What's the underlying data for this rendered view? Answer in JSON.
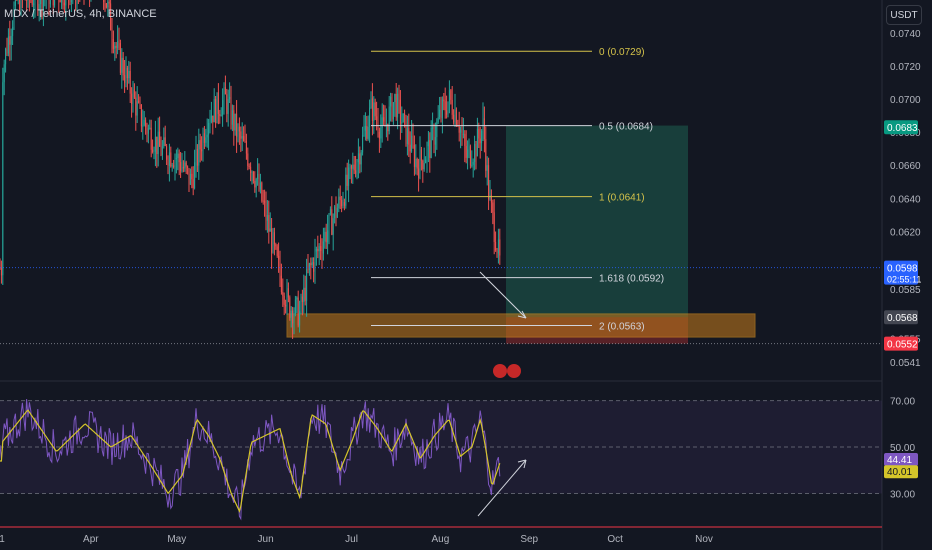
{
  "header": {
    "title": "MDX / TetherUS, 4h, BINANCE",
    "currency": "USDT"
  },
  "colors": {
    "background": "#131722",
    "up": "#26a69a",
    "down": "#ef5350",
    "rsi": "#7e57c2",
    "rsi_ma": "#d4c52a",
    "fib_gold": "#d4c24a",
    "fib_white": "#d1d4dc",
    "zone": "#b8741a",
    "price_line": "#26a69a",
    "sl": "#f23645"
  },
  "chart_data": [
    {
      "type": "candlestick",
      "title": "MDX / TetherUS, 4h, BINANCE",
      "ylim": [
        0.053,
        0.076
      ],
      "y_ticks": [
        "0.0740",
        "0.0720",
        "0.0700",
        "0.0680",
        "0.0660",
        "0.0640",
        "0.0620",
        "0.0585",
        "0.0555",
        "0.0541"
      ],
      "x_ticks": [
        "1",
        "Apr",
        "May",
        "Jun",
        "Jul",
        "Aug",
        "Sep",
        "Oct",
        "Nov"
      ],
      "tick_dates": [
        "2021-03-01",
        "2021-04-01",
        "2021-05-01",
        "2021-06-01",
        "2021-07-01",
        "2021-08-01",
        "2021-09-01",
        "2021-10-01",
        "2021-11-01"
      ],
      "series_path": [
        [
          "2021-03-01",
          0.0715
        ],
        [
          "2021-03-03",
          0.0735
        ],
        [
          "2021-03-06",
          0.076
        ],
        [
          "2021-04-05",
          0.077
        ],
        [
          "2021-04-10",
          0.073
        ],
        [
          "2021-04-18",
          0.069
        ],
        [
          "2021-04-25",
          0.067
        ],
        [
          "2021-05-01",
          0.0665
        ],
        [
          "2021-05-06",
          0.065
        ],
        [
          "2021-05-12",
          0.069
        ],
        [
          "2021-05-18",
          0.07
        ],
        [
          "2021-05-22",
          0.068
        ],
        [
          "2021-05-26",
          0.0665
        ],
        [
          "2021-05-29",
          0.065
        ],
        [
          "2021-06-01",
          0.063
        ],
        [
          "2021-06-05",
          0.06
        ],
        [
          "2021-06-09",
          0.0575
        ],
        [
          "2021-06-13",
          0.057
        ],
        [
          "2021-06-16",
          0.0595
        ],
        [
          "2021-06-21",
          0.0615
        ],
        [
          "2021-06-25",
          0.063
        ],
        [
          "2021-06-30",
          0.065
        ],
        [
          "2021-07-04",
          0.067
        ],
        [
          "2021-07-08",
          0.0695
        ],
        [
          "2021-07-12",
          0.068
        ],
        [
          "2021-07-16",
          0.07
        ],
        [
          "2021-07-20",
          0.068
        ],
        [
          "2021-07-24",
          0.066
        ],
        [
          "2021-07-28",
          0.067
        ],
        [
          "2021-08-01",
          0.069
        ],
        [
          "2021-08-04",
          0.07
        ],
        [
          "2021-08-07",
          0.069
        ],
        [
          "2021-08-10",
          0.0665
        ],
        [
          "2021-08-13",
          0.067
        ],
        [
          "2021-08-16",
          0.0684
        ],
        [
          "2021-08-18",
          0.064
        ],
        [
          "2021-08-20",
          0.062
        ],
        [
          "2021-08-22",
          0.0598
        ]
      ],
      "fib_levels": [
        {
          "label": "0 (0.0729)",
          "value": 0.0729,
          "color": "gold"
        },
        {
          "label": "0.5 (0.0684)",
          "value": 0.0684,
          "color": "white"
        },
        {
          "label": "1 (0.0641)",
          "value": 0.0641,
          "color": "gold"
        },
        {
          "label": "1.618 (0.0592)",
          "value": 0.0592,
          "color": "white"
        },
        {
          "label": "2 (0.0563)",
          "value": 0.0563,
          "color": "white"
        }
      ],
      "demand_zone": [
        0.0556,
        0.057
      ],
      "long_position": {
        "entry": 0.0568,
        "target": 0.0684,
        "stop": 0.0552
      },
      "price_labels": [
        {
          "text": "0.0683",
          "value": 0.0683,
          "kind": "green"
        },
        {
          "text": "0.0598",
          "value": 0.0598,
          "kind": "blue",
          "sub": "02:55:11"
        },
        {
          "text": "0.0568",
          "value": 0.0568,
          "kind": "grey"
        },
        {
          "text": "0.0552",
          "value": 0.0552,
          "kind": "red"
        }
      ]
    },
    {
      "type": "line",
      "name": "RSI",
      "ylim": [
        16,
        78
      ],
      "y_ticks": [
        "70.00",
        "50.00",
        "30.00"
      ],
      "bands": [
        70,
        50,
        30
      ],
      "rsi_path": [
        [
          "2021-03-01",
          52
        ],
        [
          "2021-03-10",
          66
        ],
        [
          "2021-03-20",
          48
        ],
        [
          "2021-03-30",
          60
        ],
        [
          "2021-04-08",
          50
        ],
        [
          "2021-04-15",
          55
        ],
        [
          "2021-04-22",
          42
        ],
        [
          "2021-04-28",
          30
        ],
        [
          "2021-05-03",
          38
        ],
        [
          "2021-05-08",
          62
        ],
        [
          "2021-05-12",
          55
        ],
        [
          "2021-05-16",
          45
        ],
        [
          "2021-05-20",
          30
        ],
        [
          "2021-05-23",
          22
        ],
        [
          "2021-05-27",
          52
        ],
        [
          "2021-06-01",
          55
        ],
        [
          "2021-06-06",
          58
        ],
        [
          "2021-06-10",
          38
        ],
        [
          "2021-06-13",
          28
        ],
        [
          "2021-06-17",
          64
        ],
        [
          "2021-06-22",
          60
        ],
        [
          "2021-06-27",
          40
        ],
        [
          "2021-07-01",
          52
        ],
        [
          "2021-07-05",
          66
        ],
        [
          "2021-07-10",
          58
        ],
        [
          "2021-07-15",
          48
        ],
        [
          "2021-07-20",
          60
        ],
        [
          "2021-07-25",
          45
        ],
        [
          "2021-07-30",
          55
        ],
        [
          "2021-08-04",
          62
        ],
        [
          "2021-08-08",
          46
        ],
        [
          "2021-08-12",
          50
        ],
        [
          "2021-08-15",
          62
        ],
        [
          "2021-08-17",
          48
        ],
        [
          "2021-08-19",
          33
        ],
        [
          "2021-08-22",
          44
        ]
      ],
      "rsi_value": "44.41",
      "ma_value": "40.01"
    }
  ]
}
